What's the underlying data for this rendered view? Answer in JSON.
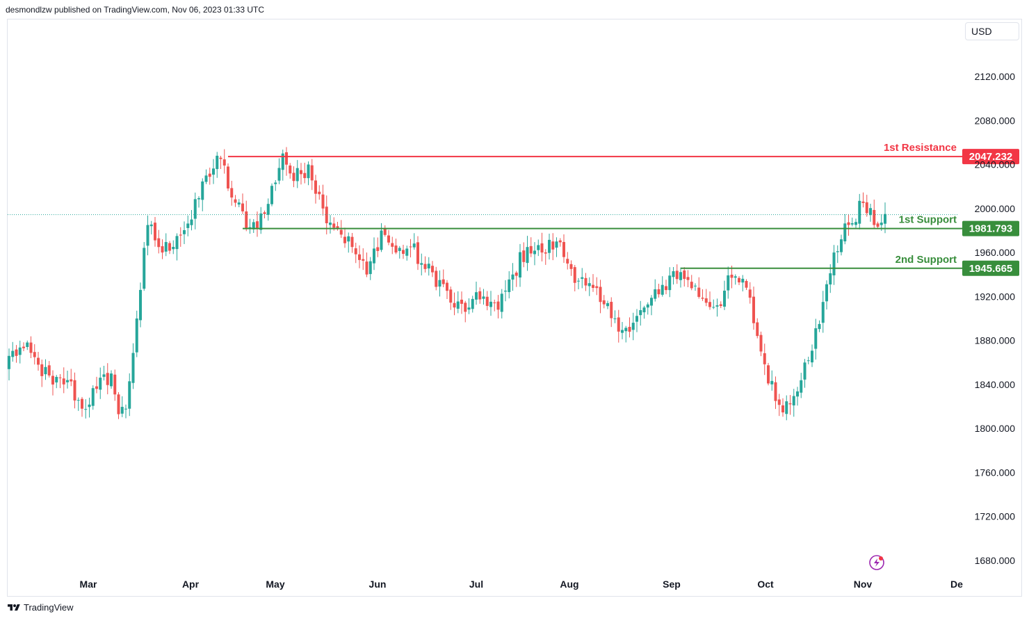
{
  "header": {
    "published": "desmondlzw published on TradingView.com, Nov 06, 2023 01:33 UTC"
  },
  "currency": "USD",
  "footer": {
    "brand": "TradingView"
  },
  "colors": {
    "up": "#26a69a",
    "down": "#ef5350",
    "resistance": "#f23645",
    "support": "#388e3c"
  },
  "chart_data": {
    "type": "candlestick",
    "y_ticks": [
      "2120.000",
      "2080.000",
      "2040.000",
      "2000.000",
      "1960.000",
      "1920.000",
      "1880.000",
      "1840.000",
      "1800.000",
      "1760.000",
      "1720.000",
      "1680.000"
    ],
    "ylim": [
      1672,
      2152
    ],
    "x_ticks": [
      "Mar",
      "Apr",
      "May",
      "Jun",
      "Jul",
      "Aug",
      "Sep",
      "Oct",
      "Nov",
      "Dec"
    ],
    "x_tick_display": [
      "Mar",
      "Apr",
      "May",
      "Jun",
      "Jul",
      "Aug",
      "Sep",
      "Oct",
      "Nov",
      "De"
    ],
    "last_price": 1994.4,
    "levels": [
      {
        "label": "1st Resistance",
        "value": 2047.232,
        "tag": "2047.232",
        "kind": "resistance",
        "from_bar": 60
      },
      {
        "label": "1st Support",
        "value": 1981.793,
        "tag": "1981.793",
        "kind": "support",
        "from_bar": 64
      },
      {
        "label": "2nd Support",
        "value": 1945.665,
        "tag": "1945.665",
        "kind": "support",
        "from_bar": 184
      }
    ],
    "anchors": [
      {
        "i": 0,
        "c": 1866
      },
      {
        "i": 4,
        "c": 1873
      },
      {
        "i": 8,
        "c": 1858
      },
      {
        "i": 12,
        "c": 1840
      },
      {
        "i": 16,
        "c": 1844
      },
      {
        "i": 20,
        "c": 1818
      },
      {
        "i": 24,
        "c": 1836
      },
      {
        "i": 28,
        "c": 1850
      },
      {
        "i": 30,
        "c": 1813
      },
      {
        "i": 32,
        "c": 1818
      },
      {
        "i": 35,
        "c": 1900
      },
      {
        "i": 38,
        "c": 1985
      },
      {
        "i": 42,
        "c": 1960
      },
      {
        "i": 46,
        "c": 1975
      },
      {
        "i": 50,
        "c": 1990
      },
      {
        "i": 54,
        "c": 2030
      },
      {
        "i": 58,
        "c": 2045
      },
      {
        "i": 61,
        "c": 2010
      },
      {
        "i": 66,
        "c": 1983
      },
      {
        "i": 70,
        "c": 1995
      },
      {
        "i": 75,
        "c": 2050
      },
      {
        "i": 78,
        "c": 2025
      },
      {
        "i": 82,
        "c": 2040
      },
      {
        "i": 86,
        "c": 2000
      },
      {
        "i": 90,
        "c": 1982
      },
      {
        "i": 94,
        "c": 1965
      },
      {
        "i": 98,
        "c": 1940
      },
      {
        "i": 102,
        "c": 1980
      },
      {
        "i": 106,
        "c": 1960
      },
      {
        "i": 110,
        "c": 1965
      },
      {
        "i": 114,
        "c": 1945
      },
      {
        "i": 118,
        "c": 1935
      },
      {
        "i": 122,
        "c": 1910
      },
      {
        "i": 126,
        "c": 1910
      },
      {
        "i": 130,
        "c": 1920
      },
      {
        "i": 134,
        "c": 1908
      },
      {
        "i": 138,
        "c": 1940
      },
      {
        "i": 142,
        "c": 1965
      },
      {
        "i": 146,
        "c": 1960
      },
      {
        "i": 150,
        "c": 1970
      },
      {
        "i": 154,
        "c": 1945
      },
      {
        "i": 158,
        "c": 1930
      },
      {
        "i": 162,
        "c": 1915
      },
      {
        "i": 166,
        "c": 1900
      },
      {
        "i": 170,
        "c": 1888
      },
      {
        "i": 174,
        "c": 1910
      },
      {
        "i": 178,
        "c": 1922
      },
      {
        "i": 182,
        "c": 1943
      },
      {
        "i": 186,
        "c": 1935
      },
      {
        "i": 190,
        "c": 1918
      },
      {
        "i": 194,
        "c": 1912
      },
      {
        "i": 198,
        "c": 1937
      },
      {
        "i": 202,
        "c": 1928
      },
      {
        "i": 206,
        "c": 1870
      },
      {
        "i": 210,
        "c": 1825
      },
      {
        "i": 214,
        "c": 1822
      },
      {
        "i": 218,
        "c": 1860
      },
      {
        "i": 222,
        "c": 1895
      },
      {
        "i": 226,
        "c": 1960
      },
      {
        "i": 230,
        "c": 1985
      },
      {
        "i": 234,
        "c": 2005
      },
      {
        "i": 237,
        "c": 1985
      },
      {
        "i": 240,
        "c": 1995
      }
    ]
  }
}
